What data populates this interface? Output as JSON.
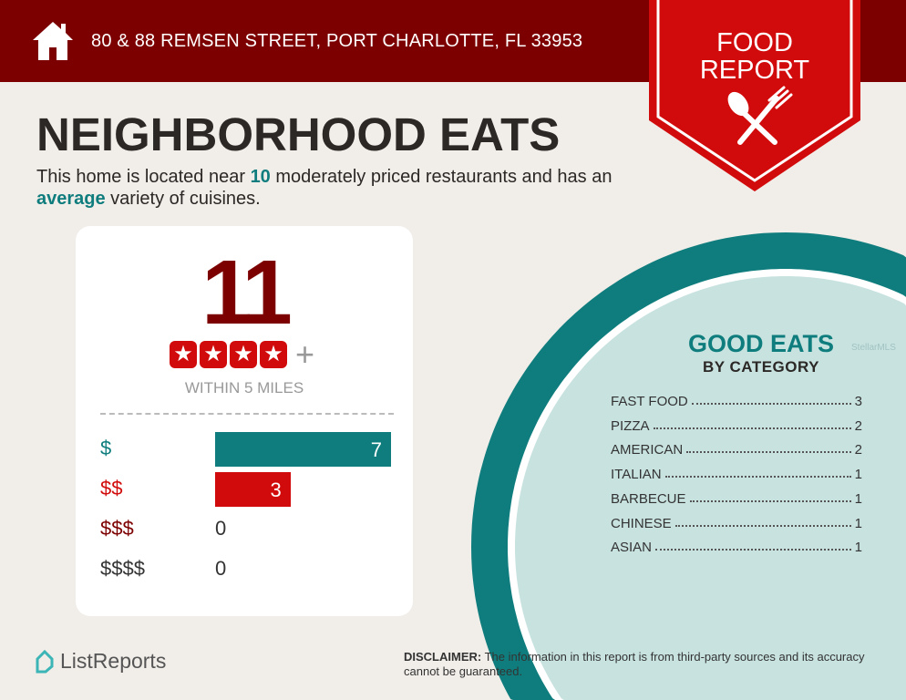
{
  "header": {
    "address": "80 & 88 REMSEN STREET, PORT CHARLOTTE, FL 33953",
    "badge_line1": "FOOD",
    "badge_line2": "REPORT",
    "icons": [
      "home-icon",
      "spoon-fork-icon"
    ]
  },
  "main": {
    "title": "NEIGHBORHOOD EATS",
    "desc_pre": "This home is located near ",
    "desc_count": "10",
    "desc_mid": " moderately priced restaurants and has an ",
    "desc_variety": "average",
    "desc_post": " variety of cuisines."
  },
  "card": {
    "total": "11",
    "rating_stars": 4,
    "rating_plus": "+",
    "within": "WITHIN 5 MILES",
    "price_levels": [
      {
        "label": "$",
        "count": 7,
        "color": "#0f7d7d"
      },
      {
        "label": "$$",
        "count": 3,
        "color": "#d10b0b"
      },
      {
        "label": "$$$",
        "count": 0,
        "color": "#7d0000"
      },
      {
        "label": "$$$$",
        "count": 0,
        "color": "#333333"
      }
    ]
  },
  "categories": {
    "title": "GOOD EATS",
    "subtitle": "BY CATEGORY",
    "items": [
      {
        "name": "FAST FOOD",
        "count": "3"
      },
      {
        "name": "PIZZA",
        "count": "2"
      },
      {
        "name": "AMERICAN",
        "count": "2"
      },
      {
        "name": "ITALIAN",
        "count": "1"
      },
      {
        "name": "BARBECUE",
        "count": "1"
      },
      {
        "name": "CHINESE",
        "count": "1"
      },
      {
        "name": "ASIAN",
        "count": "1"
      }
    ]
  },
  "footer": {
    "logo": "ListReports",
    "disclaimer_label": "DISCLAIMER:",
    "disclaimer": " The information in this report is from third-party sources and its accuracy cannot be guaranteed."
  },
  "watermark": "StellarMLS",
  "colors": {
    "dark_red": "#7d0000",
    "red": "#d10b0b",
    "teal": "#0f7d7d",
    "light_teal": "#c7e2df",
    "background": "#f1ede9"
  }
}
